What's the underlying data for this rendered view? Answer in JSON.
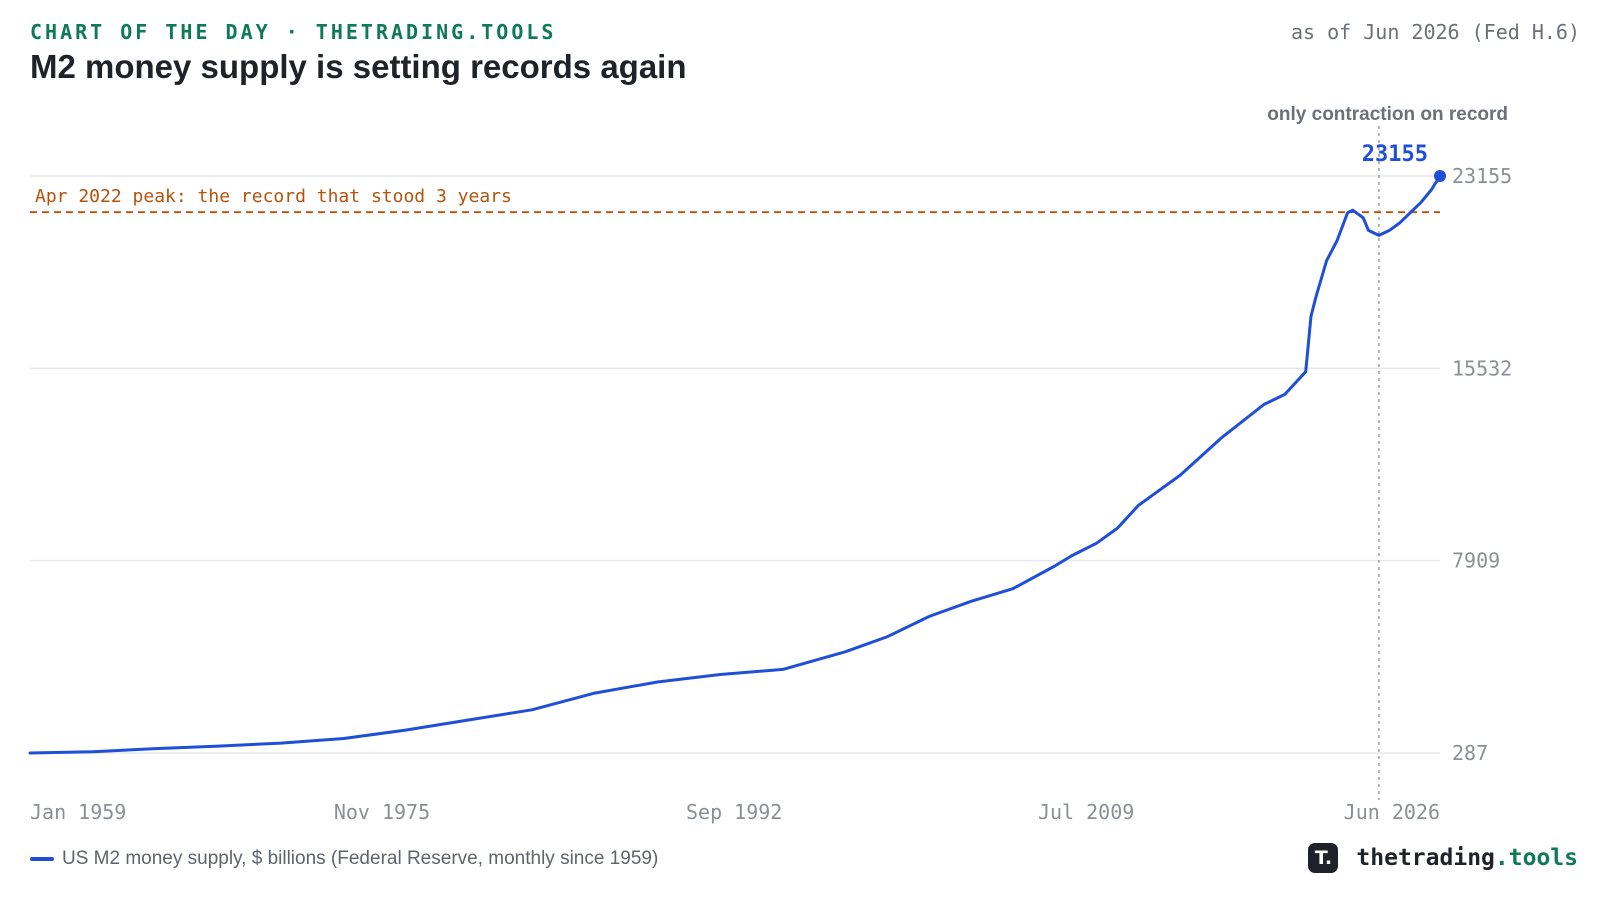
{
  "header": {
    "kicker": "CHART OF THE DAY · THETRADING.TOOLS",
    "title": "M2 money supply is setting records again",
    "as_of": "as of Jun 2026 (Fed H.6)"
  },
  "legend": {
    "label": "US M2 money supply, $ billions (Federal Reserve, monthly since 1959)"
  },
  "brand": {
    "logo_glyph": "T.",
    "name": "thetrading",
    "tld": ".tools"
  },
  "colors": {
    "line": "#1f4fd8",
    "peak": "#b5520b",
    "grid": "#e6e8eb",
    "marker": "#9aa0a8"
  },
  "chart_data": {
    "type": "line",
    "title": "M2 money supply is setting records again",
    "series": [
      {
        "name": "US M2 money supply, $ billions (Federal Reserve, monthly since 1959)",
        "x": [
          1959.0,
          1962.0,
          1965.0,
          1968.0,
          1971.0,
          1974.0,
          1977.0,
          1980.0,
          1983.0,
          1986.0,
          1989.0,
          1992.0,
          1995.0,
          1998.0,
          2000.0,
          2002.0,
          2004.0,
          2006.0,
          2008.0,
          2008.8,
          2010.0,
          2011.0,
          2012.0,
          2014.0,
          2016.0,
          2018.0,
          2019.0,
          2020.0,
          2020.25,
          2020.5,
          2021.0,
          2021.5,
          2022.0,
          2022.25,
          2022.75,
          2023.0,
          2023.5,
          2024.0,
          2024.5,
          2025.0,
          2025.5,
          2026.0,
          2026.42
        ],
        "values": [
          287,
          340,
          460,
          560,
          680,
          860,
          1200,
          1600,
          2000,
          2660,
          3100,
          3400,
          3600,
          4300,
          4900,
          5700,
          6300,
          6800,
          7700,
          8100,
          8600,
          9200,
          10100,
          11300,
          12800,
          14100,
          14500,
          15400,
          17600,
          18400,
          19800,
          20600,
          21700,
          21800,
          21500,
          21000,
          20800,
          21000,
          21300,
          21700,
          22100,
          22600,
          23155
        ]
      }
    ],
    "xlim": [
      1959.0,
      2026.42
    ],
    "ylim": [
      287,
      23155
    ],
    "y_ticks": [
      287,
      7909,
      15532,
      23155
    ],
    "x_ticks": [
      {
        "label": "Jan 1959",
        "value": 1959.0
      },
      {
        "label": "Nov 1975",
        "value": 1975.83
      },
      {
        "label": "Sep 1992",
        "value": 1992.67
      },
      {
        "label": "Jul 2009",
        "value": 2009.5
      },
      {
        "label": "Jun 2026",
        "value": 2026.42
      }
    ],
    "peak_line": {
      "value": 21720,
      "label": "Apr 2022 peak: the record that stood 3 years"
    },
    "marker_line": {
      "x": 2023.5,
      "label": "only contraction on record"
    },
    "last_value_label": "23155",
    "grid": true,
    "legend_position": "bottom-left"
  }
}
